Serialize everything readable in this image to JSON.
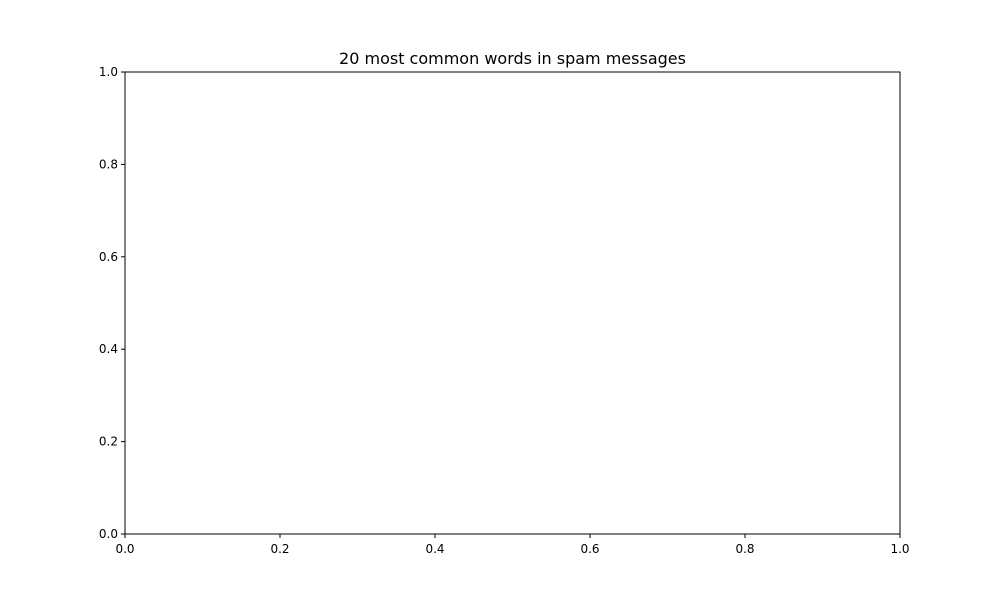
{
  "chart_data": {
    "type": "bar",
    "title": "20 most common words in spam messages",
    "xlabel": "",
    "ylabel": "",
    "categories": [],
    "values": [],
    "xlim": [
      0.0,
      1.0
    ],
    "ylim": [
      0.0,
      1.0
    ],
    "xticks": [
      "0.0",
      "0.2",
      "0.4",
      "0.6",
      "0.8",
      "1.0"
    ],
    "yticks": [
      "0.0",
      "0.2",
      "0.4",
      "0.6",
      "0.8",
      "1.0"
    ],
    "grid": false,
    "legend": "none"
  }
}
